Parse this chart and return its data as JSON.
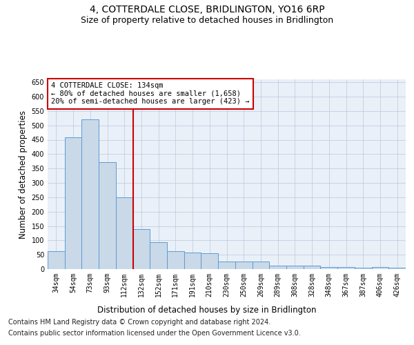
{
  "title": "4, COTTERDALE CLOSE, BRIDLINGTON, YO16 6RP",
  "subtitle": "Size of property relative to detached houses in Bridlington",
  "xlabel": "Distribution of detached houses by size in Bridlington",
  "ylabel": "Number of detached properties",
  "categories": [
    "34sqm",
    "54sqm",
    "73sqm",
    "93sqm",
    "112sqm",
    "132sqm",
    "152sqm",
    "171sqm",
    "191sqm",
    "210sqm",
    "230sqm",
    "250sqm",
    "269sqm",
    "289sqm",
    "308sqm",
    "328sqm",
    "348sqm",
    "367sqm",
    "387sqm",
    "406sqm",
    "426sqm"
  ],
  "values": [
    63,
    458,
    520,
    372,
    249,
    140,
    93,
    63,
    58,
    55,
    27,
    26,
    26,
    12,
    12,
    12,
    8,
    7,
    5,
    7,
    5
  ],
  "bar_color": "#c9d9e8",
  "bar_edge_color": "#5b9bd5",
  "vline_x": 4.5,
  "vline_color": "#cc0000",
  "annotation_text": "4 COTTERDALE CLOSE: 134sqm\n← 80% of detached houses are smaller (1,658)\n20% of semi-detached houses are larger (423) →",
  "annotation_box_color": "#ffffff",
  "annotation_box_edge_color": "#cc0000",
  "ylim": [
    0,
    660
  ],
  "yticks": [
    0,
    50,
    100,
    150,
    200,
    250,
    300,
    350,
    400,
    450,
    500,
    550,
    600,
    650
  ],
  "bg_color": "#eaf0f8",
  "plot_bg_color": "#eaf0f8",
  "footer_line1": "Contains HM Land Registry data © Crown copyright and database right 2024.",
  "footer_line2": "Contains public sector information licensed under the Open Government Licence v3.0.",
  "title_fontsize": 10,
  "subtitle_fontsize": 9,
  "tick_fontsize": 7,
  "label_fontsize": 8.5,
  "footer_fontsize": 7
}
